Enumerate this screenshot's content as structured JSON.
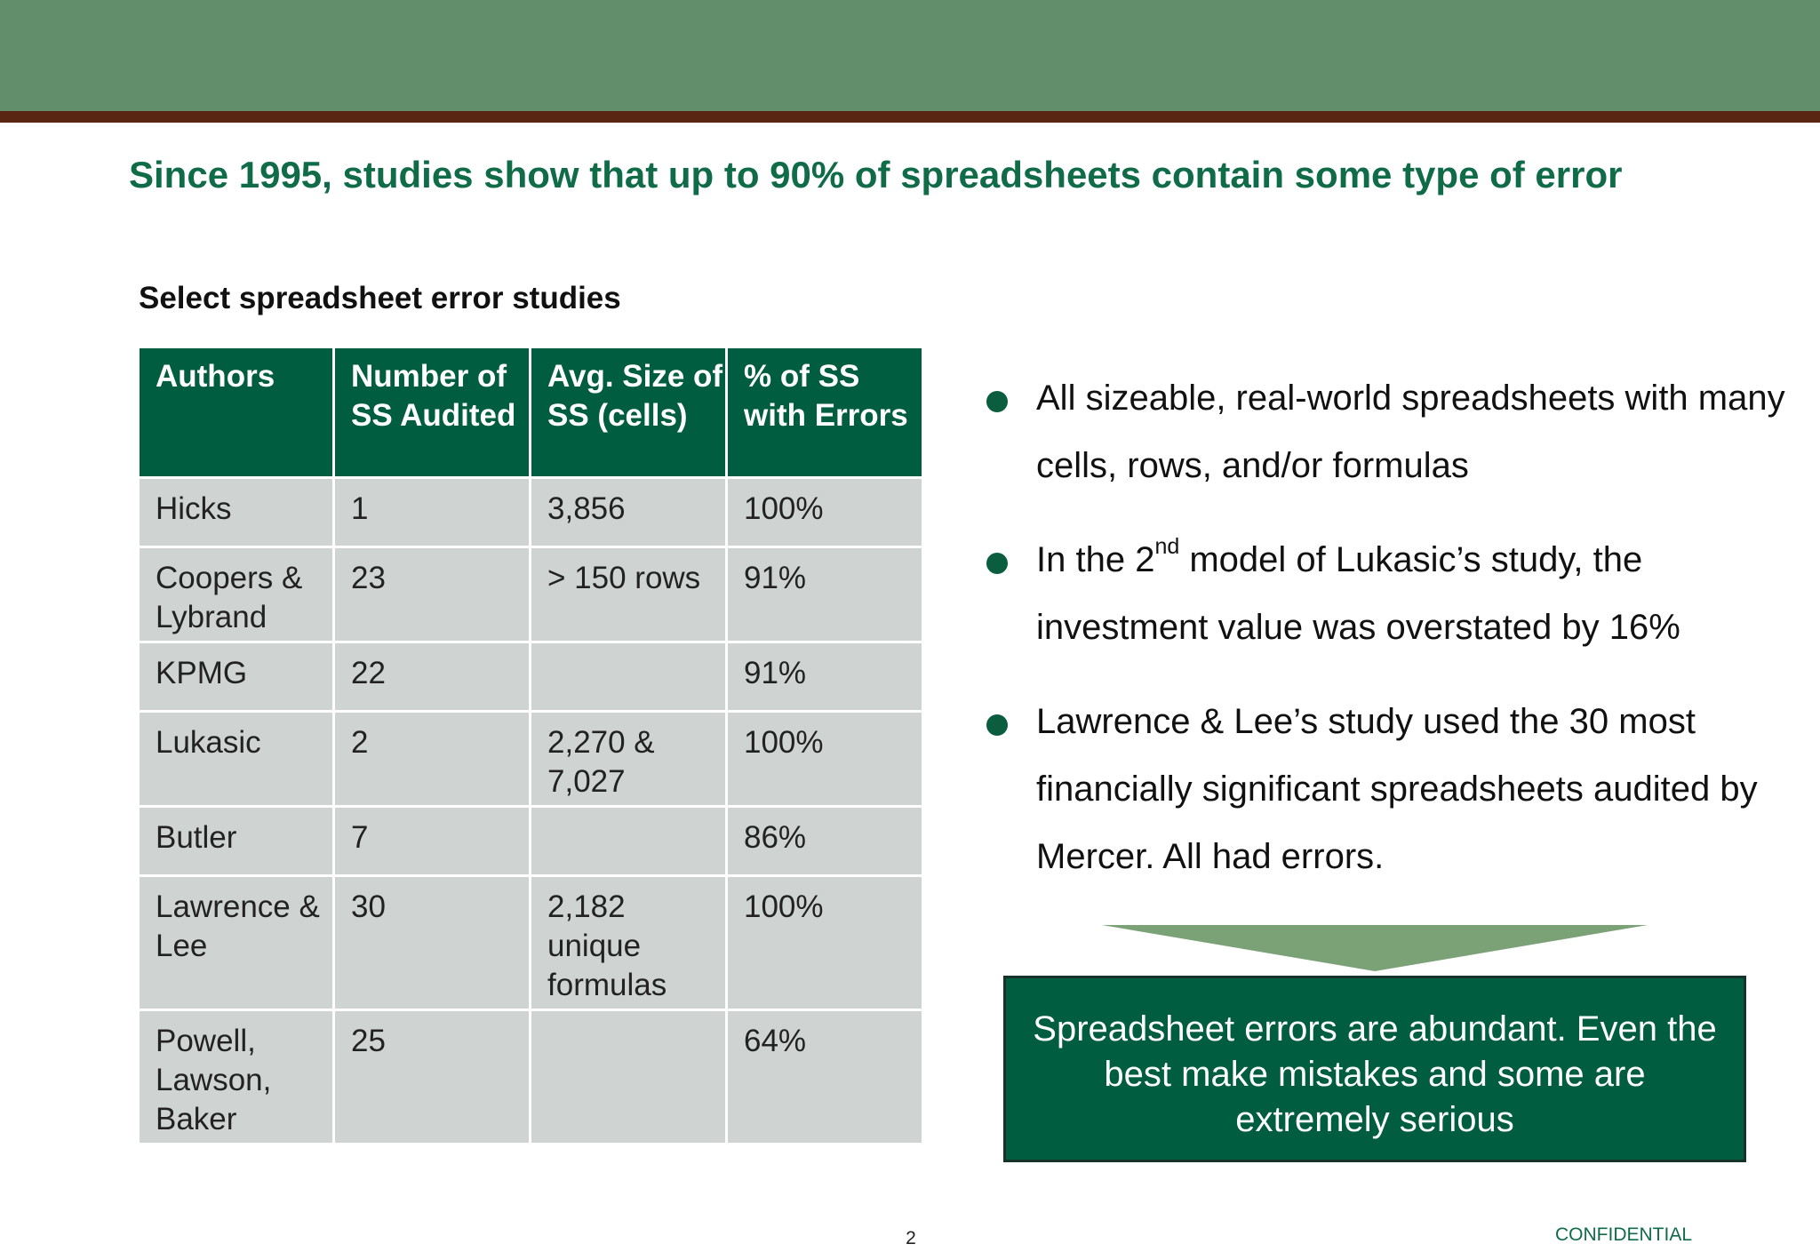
{
  "slide": {
    "title": "Since 1995, studies show that up to 90% of spreadsheets contain some type of error",
    "subtitle": "Select spreadsheet error studies"
  },
  "table": {
    "headers": [
      "Authors",
      "Number of SS Audited",
      "Avg. Size of SS (cells)",
      "% of SS with Errors"
    ],
    "rows": [
      [
        "Hicks",
        "1",
        "3,856",
        "100%"
      ],
      [
        "Coopers & Lybrand",
        "23",
        "> 150 rows",
        "91%"
      ],
      [
        "KPMG",
        "22",
        "",
        "91%"
      ],
      [
        "Lukasic",
        "2",
        "2,270 & 7,027",
        "100%"
      ],
      [
        "Butler",
        "7",
        "",
        "86%"
      ],
      [
        "Lawrence & Lee",
        "30",
        "2,182 unique formulas",
        "100%"
      ],
      [
        "Powell, Lawson, Baker",
        "25",
        "",
        "64%"
      ]
    ]
  },
  "bullets": {
    "b1": "All sizeable, real-world spreadsheets with many cells, rows, and/or formulas",
    "b2_pre": "In the 2",
    "b2_sup": "nd",
    "b2_post": " model of Lukasic’s study, the investment value was overstated by 16%",
    "b3": "Lawrence & Lee’s study used the 30 most financially significant spreadsheets audited by Mercer. All had errors."
  },
  "conclusion": "Spreadsheet errors are abundant. Even the best make mistakes and some are extremely serious",
  "footer": {
    "page_number": "2",
    "confidential": "CONFIDENTIAL"
  },
  "colors": {
    "header_band": "#638e6b",
    "header_rule": "#5a2614",
    "title_green": "#0f6b48",
    "table_header": "#005d3f",
    "table_cell": "#cfd4d3",
    "arrow": "#7ba277"
  }
}
